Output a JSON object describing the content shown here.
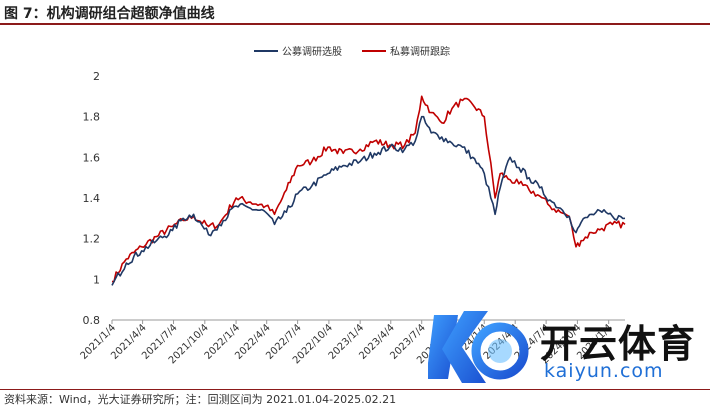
{
  "figure": {
    "title": "图 7：机构调研组合超额净值曲线",
    "footnote": "资料来源：Wind，光大证券研究所；注：回测区间为 2021.01.04-2025.02.21"
  },
  "watermark": {
    "cn_text": "开云体育",
    "en_text": "kaiyun.com"
  },
  "colors": {
    "series1": "#1f3864",
    "series2": "#c00000",
    "accent": "#8c1a1a",
    "watermark_blue": "#1f6fd6"
  },
  "chart_data": {
    "type": "line",
    "title": "",
    "xlabel": "",
    "ylabel": "",
    "ylim": [
      0.8,
      2.0
    ],
    "yticks": [
      "2",
      "1.8",
      "1.6",
      "1.4",
      "1.2",
      "1",
      "0.8"
    ],
    "grid": false,
    "legend_position": "top-center",
    "x_tick_labels": [
      "2021/1/4",
      "2021/4/4",
      "2021/7/4",
      "2021/10/4",
      "2022/1/4",
      "2022/4/4",
      "2022/7/4",
      "2022/10/4",
      "2023/1/4",
      "2023/4/4",
      "2023/7/4",
      "2023/10/4",
      "2024/1/4",
      "2024/4/4",
      "2024/7/4",
      "2024/10/4",
      "2025/1/4"
    ],
    "x": [
      "2021/1/4",
      "2021/2/15",
      "2021/4/1",
      "2021/5/15",
      "2021/7/1",
      "2021/8/1",
      "2021/9/1",
      "2021/10/15",
      "2021/11/15",
      "2022/1/4",
      "2022/2/15",
      "2022/4/1",
      "2022/4/27",
      "2022/6/1",
      "2022/7/4",
      "2022/8/15",
      "2022/10/1",
      "2022/11/15",
      "2023/1/4",
      "2023/2/15",
      "2023/4/1",
      "2023/5/15",
      "2023/6/15",
      "2023/7/4",
      "2023/8/1",
      "2023/9/1",
      "2023/10/1",
      "2023/11/1",
      "2023/12/1",
      "2024/1/4",
      "2024/2/5",
      "2024/2/20",
      "2024/3/20",
      "2024/4/15",
      "2024/5/15",
      "2024/6/15",
      "2024/7/15",
      "2024/8/15",
      "2024/9/10",
      "2024/9/30",
      "2024/10/15",
      "2024/11/15",
      "2024/12/15",
      "2025/1/15",
      "2025/2/21"
    ],
    "series": [
      {
        "name": "公募调研选股",
        "color": "#1f3864",
        "values": [
          0.97,
          1.08,
          1.14,
          1.19,
          1.24,
          1.3,
          1.32,
          1.22,
          1.27,
          1.36,
          1.35,
          1.33,
          1.27,
          1.33,
          1.42,
          1.46,
          1.52,
          1.56,
          1.58,
          1.62,
          1.65,
          1.64,
          1.68,
          1.8,
          1.72,
          1.7,
          1.67,
          1.65,
          1.6,
          1.52,
          1.32,
          1.45,
          1.6,
          1.55,
          1.5,
          1.45,
          1.39,
          1.35,
          1.31,
          1.23,
          1.28,
          1.32,
          1.33,
          1.31,
          1.3
        ]
      },
      {
        "name": "私募调研跟踪",
        "color": "#c00000",
        "values": [
          0.99,
          1.1,
          1.16,
          1.21,
          1.26,
          1.29,
          1.31,
          1.26,
          1.27,
          1.4,
          1.38,
          1.36,
          1.32,
          1.44,
          1.56,
          1.58,
          1.65,
          1.62,
          1.64,
          1.68,
          1.66,
          1.66,
          1.72,
          1.9,
          1.82,
          1.77,
          1.84,
          1.88,
          1.86,
          1.8,
          1.4,
          1.52,
          1.49,
          1.47,
          1.44,
          1.41,
          1.36,
          1.33,
          1.31,
          1.16,
          1.19,
          1.23,
          1.25,
          1.27,
          1.27
        ]
      }
    ]
  }
}
